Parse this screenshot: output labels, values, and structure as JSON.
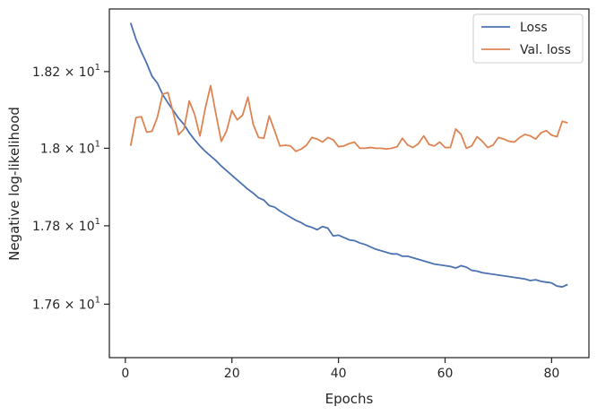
{
  "chart_data": {
    "type": "line",
    "xlabel": "Epochs",
    "ylabel": "Negative log-likelihood",
    "xlim": [
      -3,
      87
    ],
    "ylim": [
      17.465,
      18.365
    ],
    "yscale": "log",
    "grid": false,
    "legend_position": "top-right",
    "x_ticks": [
      0,
      20,
      40,
      60,
      80
    ],
    "x_tick_labels": [
      "0",
      "20",
      "40",
      "60",
      "80"
    ],
    "y_ticks": [
      17.6,
      17.8,
      18.0,
      18.2
    ],
    "y_tick_labels": [
      {
        "mantissa": "1.76",
        "exponent": "1"
      },
      {
        "mantissa": "1.78",
        "exponent": "1"
      },
      {
        "mantissa": "1.8",
        "exponent": "1"
      },
      {
        "mantissa": "1.82",
        "exponent": "1"
      }
    ],
    "x": [
      1,
      2,
      3,
      4,
      5,
      6,
      7,
      8,
      9,
      10,
      11,
      12,
      13,
      14,
      15,
      16,
      17,
      18,
      19,
      20,
      21,
      22,
      23,
      24,
      25,
      26,
      27,
      28,
      29,
      30,
      31,
      32,
      33,
      34,
      35,
      36,
      37,
      38,
      39,
      40,
      41,
      42,
      43,
      44,
      45,
      46,
      47,
      48,
      49,
      50,
      51,
      52,
      53,
      54,
      55,
      56,
      57,
      58,
      59,
      60,
      61,
      62,
      63,
      64,
      65,
      66,
      67,
      68,
      69,
      70,
      71,
      72,
      73,
      74,
      75,
      76,
      77,
      78,
      79,
      80,
      81,
      82,
      83
    ],
    "series": [
      {
        "name": "Loss",
        "color": "#4c72b0",
        "values": [
          18.328,
          18.285,
          18.252,
          18.222,
          18.188,
          18.17,
          18.14,
          18.118,
          18.098,
          18.078,
          18.062,
          18.04,
          18.022,
          18.006,
          17.992,
          17.98,
          17.968,
          17.954,
          17.942,
          17.93,
          17.918,
          17.906,
          17.894,
          17.884,
          17.872,
          17.866,
          17.852,
          17.848,
          17.838,
          17.83,
          17.822,
          17.814,
          17.808,
          17.8,
          17.796,
          17.79,
          17.798,
          17.794,
          17.774,
          17.776,
          17.77,
          17.764,
          17.762,
          17.756,
          17.752,
          17.746,
          17.74,
          17.736,
          17.732,
          17.728,
          17.728,
          17.722,
          17.722,
          17.718,
          17.714,
          17.71,
          17.706,
          17.702,
          17.7,
          17.698,
          17.696,
          17.692,
          17.698,
          17.694,
          17.686,
          17.684,
          17.68,
          17.678,
          17.676,
          17.674,
          17.672,
          17.67,
          17.668,
          17.666,
          17.664,
          17.66,
          17.662,
          17.658,
          17.656,
          17.654,
          17.646,
          17.644,
          17.65
        ]
      },
      {
        "name": "Val. loss",
        "color": "#dd8452",
        "values": [
          18.006,
          18.08,
          18.082,
          18.042,
          18.044,
          18.08,
          18.141,
          18.145,
          18.092,
          18.035,
          18.05,
          18.123,
          18.088,
          18.032,
          18.104,
          18.163,
          18.089,
          18.018,
          18.045,
          18.098,
          18.074,
          18.086,
          18.133,
          18.062,
          18.028,
          18.026,
          18.084,
          18.046,
          18.006,
          18.008,
          18.006,
          17.992,
          17.998,
          18.008,
          18.028,
          18.024,
          18.016,
          18.028,
          18.022,
          18.004,
          18.006,
          18.012,
          18.016,
          18.0,
          18.0,
          18.002,
          18.0,
          18.0,
          17.998,
          18.0,
          18.004,
          18.026,
          18.008,
          18.002,
          18.012,
          18.032,
          18.01,
          18.006,
          18.016,
          18.002,
          18.002,
          18.05,
          18.036,
          18.0,
          18.006,
          18.03,
          18.018,
          18.002,
          18.008,
          18.028,
          18.024,
          18.018,
          18.016,
          18.028,
          18.036,
          18.032,
          18.024,
          18.04,
          18.046,
          18.034,
          18.03,
          18.07,
          18.066
        ]
      }
    ]
  }
}
